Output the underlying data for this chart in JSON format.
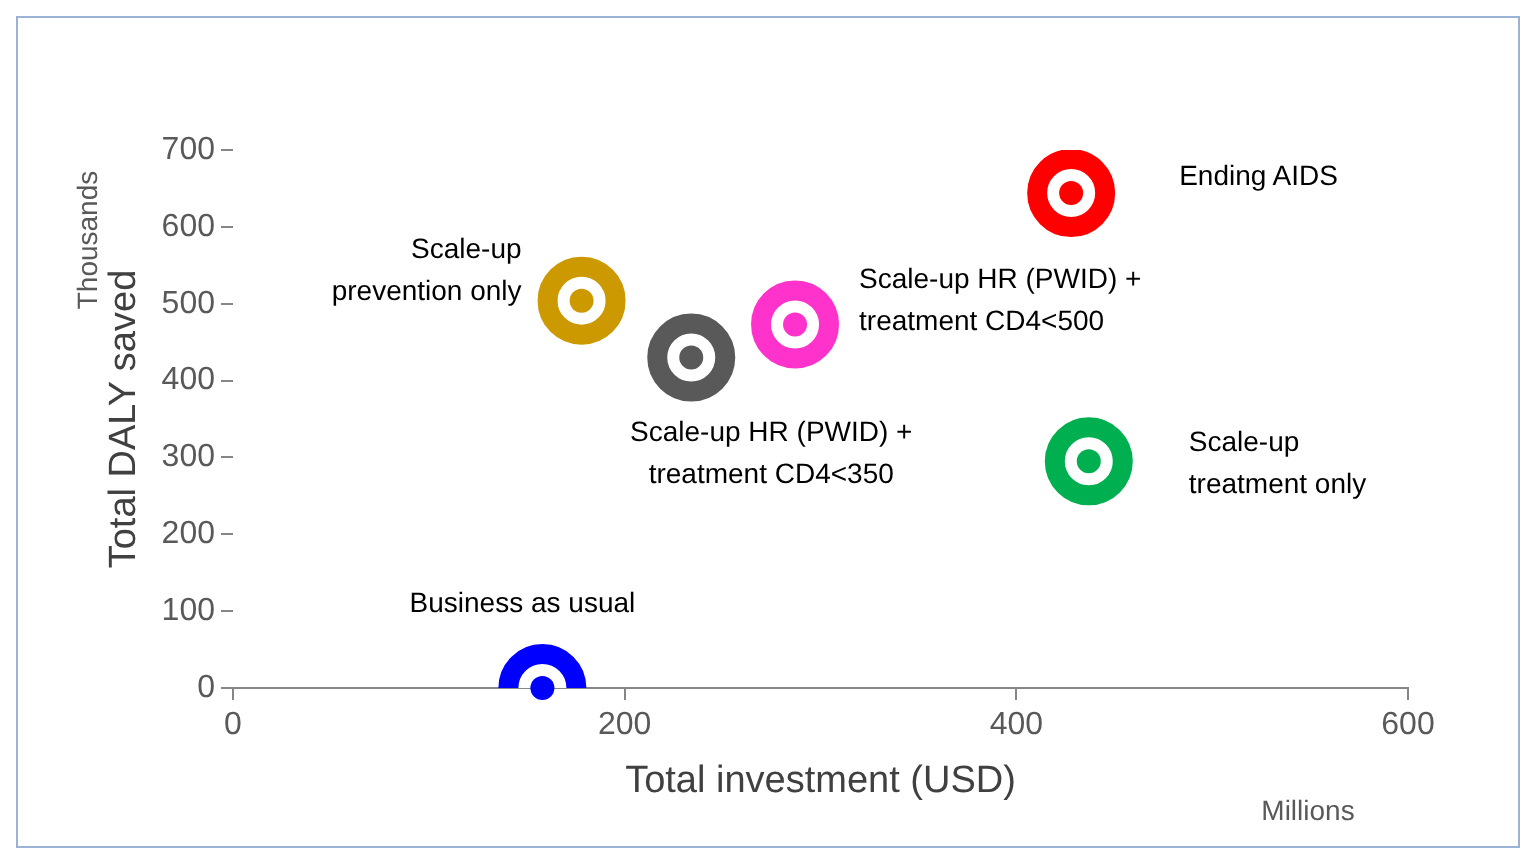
{
  "chart_data": {
    "type": "scatter",
    "xlabel": "Total investment (USD)",
    "ylabel": "Total DALY saved",
    "annotations": [
      "Millions",
      "Thousands"
    ],
    "xlim": [
      0,
      600
    ],
    "xticks": [
      0,
      200,
      400,
      600
    ],
    "ylim": [
      0,
      700
    ],
    "yticks": [
      0,
      100,
      200,
      300,
      400,
      500,
      600,
      700
    ],
    "grid": false,
    "legend": false,
    "marker": "circle",
    "series": [
      {
        "name": "Business as usual",
        "color": "#0000ff",
        "x": [
          158
        ],
        "values": [
          0
        ]
      },
      {
        "name": "Scale-up prevention only",
        "color": "#cc9900",
        "x": [
          178
        ],
        "values": [
          504
        ]
      },
      {
        "name": "Scale-up HR (PWID) + treatment CD4<350",
        "color": "#595959",
        "x": [
          234
        ],
        "values": [
          430
        ]
      },
      {
        "name": "Scale-up HR (PWID) + treatment CD4<500",
        "color": "#ff33cc",
        "x": [
          287
        ],
        "values": [
          473
        ]
      },
      {
        "name": "Ending AIDS",
        "color": "#ff0000",
        "x": [
          428
        ],
        "values": [
          644
        ]
      },
      {
        "name": "Scale-up treatment only",
        "color": "#00b050",
        "x": [
          437
        ],
        "values": [
          295
        ]
      }
    ]
  }
}
